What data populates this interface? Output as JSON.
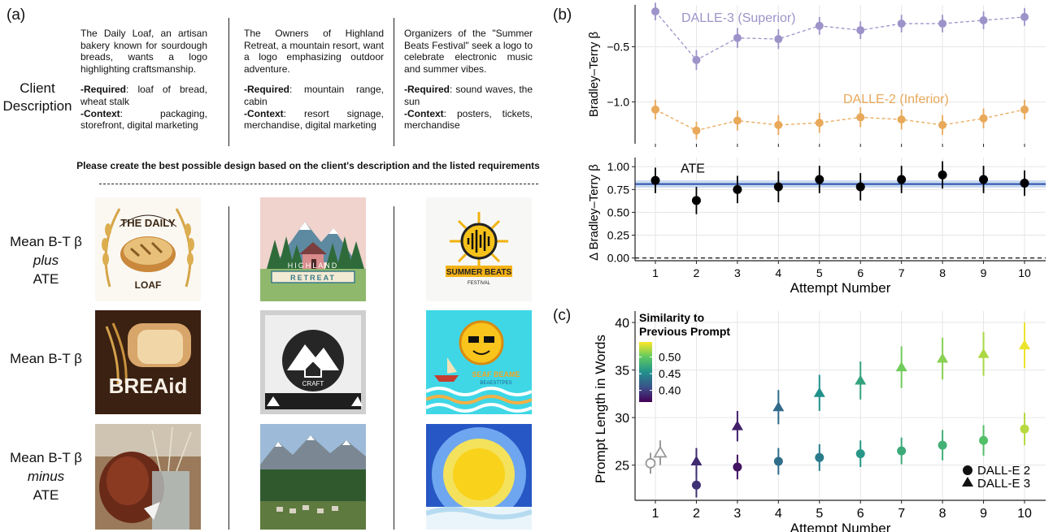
{
  "panel_a": {
    "label": "(a)",
    "client_description_label": [
      "Client",
      "Description"
    ],
    "clients": [
      {
        "intro": "The Daily Loaf, an artisan bakery known for sourdough breads, wants a logo highlighting craftsmanship.",
        "required_label": "-Required",
        "required": ": loaf of bread, wheat stalk",
        "context_label": "-Context",
        "context": ": packaging, storefront, digital marketing"
      },
      {
        "intro": "The Owners of Highland Retreat, a mountain resort, want a logo emphasizing outdoor adventure.",
        "required_label": "-Required",
        "required": ": mountain range, cabin",
        "context_label": "-Context",
        "context": ": resort signage, merchandise, digital marketing"
      },
      {
        "intro": "Organizers of the \"Summer Beats Festival\" seek a logo to celebrate electronic music and summer vibes.",
        "required_label": "-Required",
        "required": ": sound waves, the sun",
        "context_label": "-Context",
        "context": ": posters, tickets, merchandise"
      }
    ],
    "instruction": "Please create the best possible design based on the client's description and the listed requirements",
    "rows": [
      {
        "line1": "Mean B-T β",
        "line2": "plus",
        "line3": "ATE"
      },
      {
        "line1": "Mean B-T β",
        "line2": "",
        "line3": ""
      },
      {
        "line1": "Mean B-T β",
        "line2": "minus",
        "line3": "ATE"
      }
    ],
    "logo_texts": {
      "daily_loaf_top": "THE DAILY",
      "daily_loaf_bottom": "LOAF",
      "highland": "HIGHLAND",
      "retreat": "RETREAT",
      "summer_beats": "SUMMER BEATS",
      "festival": "FESTIVAL",
      "breaid": "BREAid",
      "craft": "CRAFT",
      "seaf_beame": "SEAF BEAME",
      "beastipes": "BEAESTTPES"
    }
  },
  "panel_b_label": "(b)",
  "panel_c_label": "(c)",
  "chart_data": [
    {
      "type": "line",
      "id": "bt_top",
      "ylabel": "Bradley–Terry β",
      "x": [
        1,
        2,
        3,
        4,
        5,
        6,
        7,
        8,
        9,
        10
      ],
      "ylim": [
        -1.38,
        -0.12
      ],
      "yticks": [
        -0.5,
        -1.0
      ],
      "ytick_labels": [
        "−0.5",
        "−1.0"
      ],
      "grid": true,
      "series": [
        {
          "name": "DALLE-3 (Superior)",
          "color": "#9d93c9",
          "values": [
            -0.18,
            -0.62,
            -0.42,
            -0.43,
            -0.31,
            -0.35,
            -0.29,
            -0.29,
            -0.26,
            -0.23
          ],
          "err": [
            0.08,
            0.09,
            0.09,
            0.09,
            0.08,
            0.08,
            0.08,
            0.08,
            0.08,
            0.08
          ]
        },
        {
          "name": "DALLE-2 (Inferior)",
          "color": "#e8a95a",
          "values": [
            -1.07,
            -1.26,
            -1.17,
            -1.21,
            -1.19,
            -1.14,
            -1.16,
            -1.21,
            -1.15,
            -1.07
          ],
          "err": [
            0.09,
            0.08,
            0.09,
            0.09,
            0.09,
            0.09,
            0.09,
            0.09,
            0.09,
            0.09
          ]
        }
      ]
    },
    {
      "type": "scatter",
      "id": "delta_bt",
      "xlabel": "Attempt Number",
      "ylabel": "Δ Bradley–Terry β",
      "x": [
        1,
        2,
        3,
        4,
        5,
        6,
        7,
        8,
        9,
        10
      ],
      "ylim": [
        -0.03,
        1.1
      ],
      "yticks": [
        0.0,
        0.25,
        0.5,
        0.75,
        1.0
      ],
      "ytick_labels": [
        "0.00",
        "0.25",
        "0.50",
        "0.75",
        "1.00"
      ],
      "grid": true,
      "annotation": "ATE",
      "ate": 0.81,
      "ate_band": [
        0.77,
        0.85
      ],
      "series": [
        {
          "name": "",
          "color": "#000000",
          "values": [
            0.85,
            0.63,
            0.75,
            0.78,
            0.86,
            0.78,
            0.86,
            0.91,
            0.86,
            0.82
          ],
          "err": [
            0.14,
            0.15,
            0.15,
            0.17,
            0.15,
            0.15,
            0.15,
            0.15,
            0.15,
            0.14
          ]
        }
      ]
    },
    {
      "type": "scatter",
      "id": "prompt_length",
      "xlabel": "Attempt Number",
      "ylabel": "Prompt Length in Words",
      "x": [
        1,
        2,
        3,
        4,
        5,
        6,
        7,
        8,
        9,
        10
      ],
      "ylim": [
        21.3,
        41.2
      ],
      "yticks": [
        25,
        30,
        35,
        40
      ],
      "ytick_labels": [
        "25",
        "30",
        "35",
        "40"
      ],
      "grid": true,
      "colorbar": {
        "title": [
          "Similarity to",
          "Previous Prompt"
        ],
        "range": [
          0.365,
          0.545
        ],
        "ticks": [
          "0.50",
          "0.45",
          "0.40"
        ],
        "tick_values": [
          0.5,
          0.45,
          0.4
        ]
      },
      "legend": {
        "position": "bottom-right",
        "entries": [
          {
            "label": "DALL-E 2",
            "marker": "circle"
          },
          {
            "label": "DALL-E 3",
            "marker": "triangle"
          }
        ]
      },
      "series": [
        {
          "name": "DALL-E 2",
          "marker": "circle",
          "values": [
            25.2,
            22.9,
            24.8,
            25.4,
            25.8,
            26.2,
            26.5,
            27.1,
            27.6,
            28.8
          ],
          "err": [
            1.1,
            1.3,
            1.3,
            1.4,
            1.4,
            1.4,
            1.4,
            1.6,
            1.6,
            1.7
          ],
          "similarity": [
            null,
            0.392,
            0.375,
            0.43,
            0.44,
            0.46,
            0.475,
            0.48,
            0.492,
            0.525
          ]
        },
        {
          "name": "DALL-E 3",
          "marker": "triangle",
          "values": [
            26.3,
            25.4,
            29.1,
            31.1,
            32.6,
            33.9,
            35.3,
            36.2,
            36.7,
            37.6
          ],
          "err": [
            1.3,
            1.4,
            1.6,
            1.8,
            1.9,
            2.0,
            2.2,
            2.2,
            2.3,
            2.4
          ],
          "similarity": [
            null,
            0.388,
            0.382,
            0.427,
            0.455,
            0.47,
            0.505,
            0.512,
            0.522,
            0.54
          ]
        }
      ]
    }
  ]
}
